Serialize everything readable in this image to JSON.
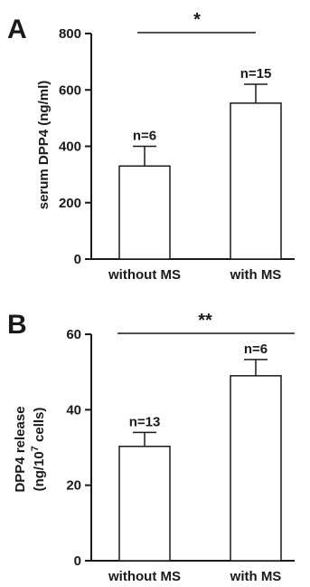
{
  "chart_data": [
    {
      "type": "bar",
      "panel_label": "A",
      "ylabel": "serum DPP4 (ng/ml)",
      "ylim": [
        0,
        800
      ],
      "yticks": [
        0,
        200,
        400,
        600,
        800
      ],
      "categories": [
        "without MS",
        "with MS"
      ],
      "values": [
        330,
        553
      ],
      "errors": [
        70,
        67
      ],
      "n_labels": [
        "n=6",
        "n=15"
      ],
      "significance": "*",
      "grid": false
    },
    {
      "type": "bar",
      "panel_label": "B",
      "ylabel_line1": "DPP4 release",
      "ylabel_line2_pre": "(ng/10",
      "ylabel_line2_sup": "7",
      "ylabel_line2_post": " cells)",
      "ylim": [
        0,
        60
      ],
      "yticks": [
        0,
        20,
        40,
        60
      ],
      "categories": [
        "without MS",
        "with MS"
      ],
      "values": [
        30.3,
        49
      ],
      "errors": [
        3.7,
        4.3
      ],
      "n_labels": [
        "n=13",
        "n=6"
      ],
      "significance": "**",
      "grid": false
    }
  ]
}
